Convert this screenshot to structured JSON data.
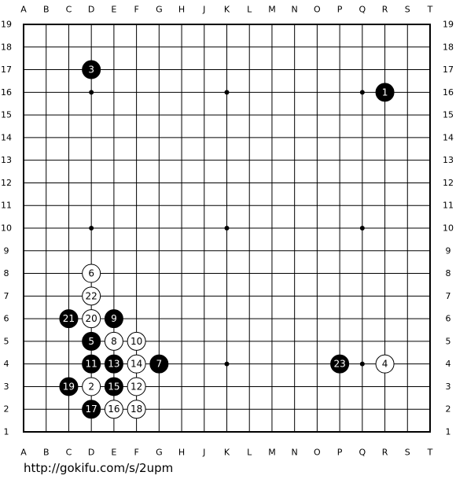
{
  "board": {
    "columns": [
      "A",
      "B",
      "C",
      "D",
      "E",
      "F",
      "G",
      "H",
      "J",
      "K",
      "L",
      "M",
      "N",
      "O",
      "P",
      "Q",
      "R",
      "S",
      "T"
    ],
    "rows": [
      "19",
      "18",
      "17",
      "16",
      "15",
      "14",
      "13",
      "12",
      "11",
      "10",
      "9",
      "8",
      "7",
      "6",
      "5",
      "4",
      "3",
      "2",
      "1"
    ],
    "stones": [
      {
        "label": "1",
        "col": "R",
        "row": "16",
        "color": "black"
      },
      {
        "label": "2",
        "col": "D",
        "row": "3",
        "color": "white"
      },
      {
        "label": "3",
        "col": "D",
        "row": "17",
        "color": "black"
      },
      {
        "label": "4",
        "col": "R",
        "row": "4",
        "color": "white"
      },
      {
        "label": "5",
        "col": "D",
        "row": "5",
        "color": "black"
      },
      {
        "label": "6",
        "col": "D",
        "row": "8",
        "color": "white"
      },
      {
        "label": "7",
        "col": "G",
        "row": "4",
        "color": "black"
      },
      {
        "label": "8",
        "col": "E",
        "row": "5",
        "color": "white"
      },
      {
        "label": "9",
        "col": "E",
        "row": "6",
        "color": "black"
      },
      {
        "label": "10",
        "col": "F",
        "row": "5",
        "color": "white"
      },
      {
        "label": "11",
        "col": "D",
        "row": "4",
        "color": "black"
      },
      {
        "label": "12",
        "col": "F",
        "row": "3",
        "color": "white"
      },
      {
        "label": "13",
        "col": "E",
        "row": "4",
        "color": "black"
      },
      {
        "label": "14",
        "col": "F",
        "row": "4",
        "color": "white"
      },
      {
        "label": "15",
        "col": "E",
        "row": "3",
        "color": "black"
      },
      {
        "label": "16",
        "col": "E",
        "row": "2",
        "color": "white"
      },
      {
        "label": "17",
        "col": "D",
        "row": "2",
        "color": "black"
      },
      {
        "label": "18",
        "col": "F",
        "row": "2",
        "color": "white"
      },
      {
        "label": "19",
        "col": "C",
        "row": "3",
        "color": "black"
      },
      {
        "label": "20",
        "col": "D",
        "row": "6",
        "color": "white"
      },
      {
        "label": "21",
        "col": "C",
        "row": "6",
        "color": "black"
      },
      {
        "label": "22",
        "col": "D",
        "row": "7",
        "color": "white"
      },
      {
        "label": "23",
        "col": "P",
        "row": "4",
        "color": "black"
      }
    ]
  },
  "footer": {
    "url": "http://gokifu.com/s/2upm"
  }
}
